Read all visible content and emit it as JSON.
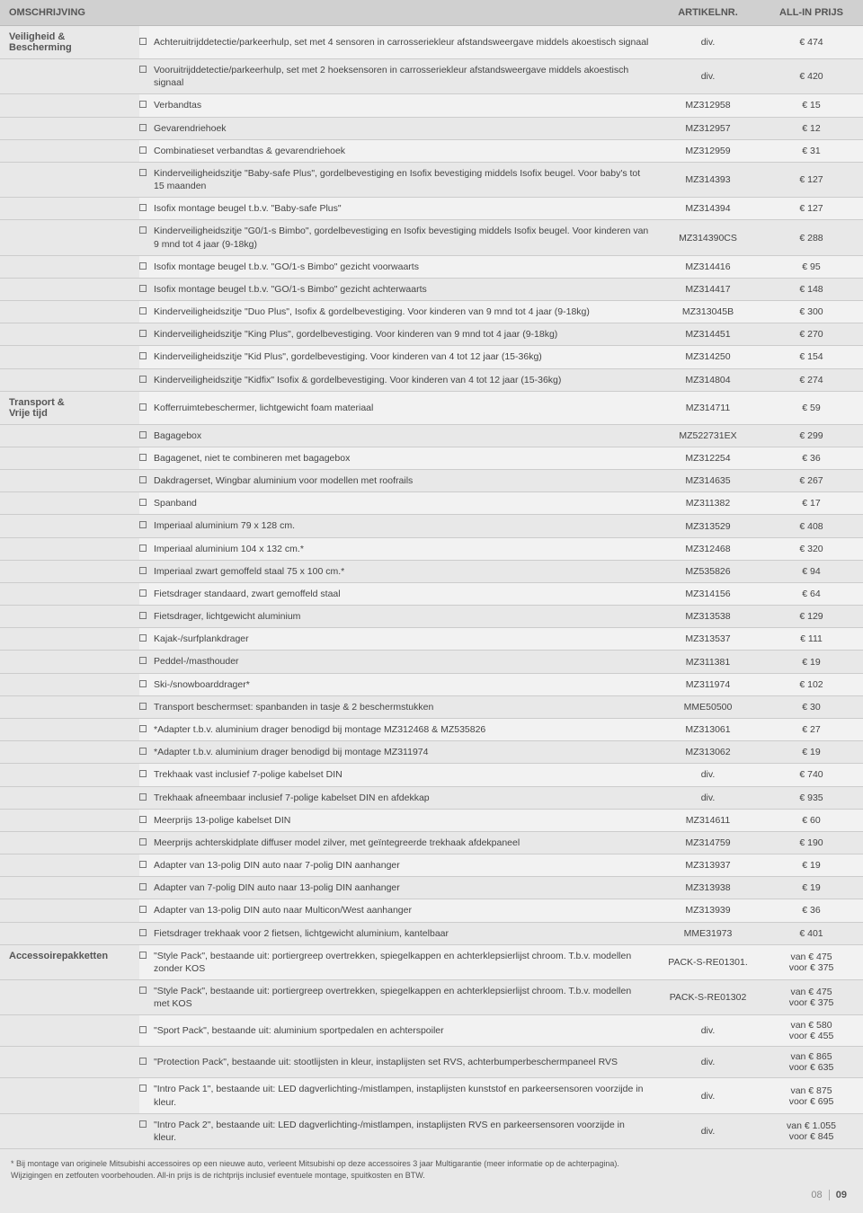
{
  "headers": {
    "description": "OMSCHRIJVING",
    "artnr": "ARTIKELNR.",
    "price": "ALL-IN PRIJS"
  },
  "categories": [
    {
      "name": "Veiligheid & Bescherming",
      "rows": [
        {
          "desc": "Achteruitrijddetectie/parkeerhulp, set met 4 sensoren in carrosseriekleur afstandsweergave middels akoestisch signaal",
          "art": "div.",
          "price": "€ 474"
        },
        {
          "desc": "Vooruitrijddetectie/parkeerhulp, set met 2 hoeksensoren in carrosseriekleur afstandsweergave middels akoestisch signaal",
          "art": "div.",
          "price": "€ 420"
        },
        {
          "desc": "Verbandtas",
          "art": "MZ312958",
          "price": "€ 15"
        },
        {
          "desc": "Gevarendriehoek",
          "art": "MZ312957",
          "price": "€ 12"
        },
        {
          "desc": "Combinatieset verbandtas & gevarendriehoek",
          "art": "MZ312959",
          "price": "€ 31"
        },
        {
          "desc": "Kinderveiligheidszitje \"Baby-safe Plus\", gordelbevestiging en Isofix bevestiging middels Isofix beugel. Voor baby's tot 15 maanden",
          "art": "MZ314393",
          "price": "€ 127"
        },
        {
          "desc": "Isofix montage beugel t.b.v. \"Baby-safe Plus\"",
          "art": "MZ314394",
          "price": "€ 127"
        },
        {
          "desc": "Kinderveiligheidszitje \"G0/1-s Bimbo\", gordelbevestiging en Isofix bevestiging middels Isofix beugel. Voor kinderen van 9 mnd tot 4 jaar (9-18kg)",
          "art": "MZ314390CS",
          "price": "€ 288"
        },
        {
          "desc": "Isofix montage beugel t.b.v. \"GO/1-s Bimbo\" gezicht voorwaarts",
          "art": "MZ314416",
          "price": "€ 95"
        },
        {
          "desc": "Isofix montage beugel t.b.v. \"GO/1-s Bimbo\" gezicht achterwaarts",
          "art": "MZ314417",
          "price": "€ 148"
        },
        {
          "desc": "Kinderveiligheidszitje \"Duo Plus\", Isofix & gordelbevestiging. Voor kinderen van 9 mnd tot 4 jaar (9-18kg)",
          "art": "MZ313045B",
          "price": "€ 300"
        },
        {
          "desc": "Kinderveiligheidszitje \"King Plus\", gordelbevestiging. Voor kinderen van 9 mnd tot 4 jaar (9-18kg)",
          "art": "MZ314451",
          "price": "€ 270"
        },
        {
          "desc": "Kinderveiligheidszitje \"Kid Plus\", gordelbevestiging. Voor kinderen van 4 tot 12 jaar (15-36kg)",
          "art": "MZ314250",
          "price": "€ 154"
        },
        {
          "desc": "Kinderveiligheidszitje \"Kidfix\" Isofix & gordelbevestiging. Voor kinderen van 4 tot 12 jaar (15-36kg)",
          "art": "MZ314804",
          "price": "€ 274"
        }
      ]
    },
    {
      "name": "Transport & Vrije tijd",
      "rows": [
        {
          "desc": "Kofferruimtebeschermer, lichtgewicht foam materiaal",
          "art": "MZ314711",
          "price": "€ 59"
        },
        {
          "desc": "Bagagebox",
          "art": "MZ522731EX",
          "price": "€ 299"
        },
        {
          "desc": "Bagagenet, niet te combineren met bagagebox",
          "art": "MZ312254",
          "price": "€ 36"
        },
        {
          "desc": "Dakdragerset, Wingbar aluminium voor modellen met roofrails",
          "art": "MZ314635",
          "price": "€ 267"
        },
        {
          "desc": "Spanband",
          "art": "MZ311382",
          "price": "€ 17"
        },
        {
          "desc": "Imperiaal aluminium 79 x 128 cm.",
          "art": "MZ313529",
          "price": "€ 408"
        },
        {
          "desc": "Imperiaal aluminium 104 x 132 cm.*",
          "art": "MZ312468",
          "price": "€ 320"
        },
        {
          "desc": "Imperiaal zwart gemoffeld staal 75 x 100 cm.*",
          "art": "MZ535826",
          "price": "€ 94"
        },
        {
          "desc": "Fietsdrager standaard, zwart gemoffeld staal",
          "art": "MZ314156",
          "price": "€ 64"
        },
        {
          "desc": "Fietsdrager, lichtgewicht aluminium",
          "art": "MZ313538",
          "price": "€ 129"
        },
        {
          "desc": "Kajak-/surfplankdrager",
          "art": "MZ313537",
          "price": "€ 111"
        },
        {
          "desc": "Peddel-/masthouder",
          "art": "MZ311381",
          "price": "€ 19"
        },
        {
          "desc": "Ski-/snowboarddrager*",
          "art": "MZ311974",
          "price": "€ 102"
        },
        {
          "desc": "Transport beschermset: spanbanden in tasje & 2 beschermstukken",
          "art": "MME50500",
          "price": "€ 30"
        },
        {
          "desc": "*Adapter t.b.v. aluminium drager benodigd bij montage MZ312468 & MZ535826",
          "art": "MZ313061",
          "price": "€ 27"
        },
        {
          "desc": "*Adapter t.b.v. aluminium drager benodigd bij montage MZ311974",
          "art": "MZ313062",
          "price": "€ 19"
        },
        {
          "desc": "Trekhaak vast inclusief 7-polige kabelset DIN",
          "art": "div.",
          "price": "€ 740"
        },
        {
          "desc": "Trekhaak afneembaar  inclusief 7-polige kabelset DIN en afdekkap",
          "art": "div.",
          "price": "€ 935"
        },
        {
          "desc": "Meerprijs 13-polige kabelset DIN",
          "art": "MZ314611",
          "price": "€ 60"
        },
        {
          "desc": "Meerprijs achterskidplate diffuser model zilver, met geïntegreerde trekhaak afdekpaneel",
          "art": "MZ314759",
          "price": "€ 190"
        },
        {
          "desc": "Adapter van 13-polig DIN auto naar 7-polig DIN aanhanger",
          "art": "MZ313937",
          "price": "€ 19"
        },
        {
          "desc": "Adapter van 7-polig DIN auto naar 13-polig DIN aanhanger",
          "art": "MZ313938",
          "price": "€ 19"
        },
        {
          "desc": "Adapter van 13-polig DIN auto naar Multicon/West aanhanger",
          "art": "MZ313939",
          "price": "€ 36"
        },
        {
          "desc": "Fietsdrager trekhaak voor 2 fietsen, lichtgewicht aluminium, kantelbaar",
          "art": "MME31973",
          "price": "€ 401"
        }
      ]
    },
    {
      "name": "Accessoirepakketten",
      "rows": [
        {
          "desc": "\"Style Pack\", bestaande uit: portiergreep overtrekken, spiegelkappen en achterklepsierlijst chroom. T.b.v. modellen zonder KOS",
          "art": "PACK-S-RE01301.",
          "price": "van € 475\nvoor € 375"
        },
        {
          "desc": "\"Style Pack\", bestaande uit: portiergreep overtrekken, spiegelkappen en achterklepsierlijst chroom. T.b.v. modellen met KOS",
          "art": "PACK-S-RE01302",
          "price": "van € 475\nvoor € 375"
        },
        {
          "desc": "\"Sport Pack\", bestaande uit: aluminium sportpedalen en achterspoiler",
          "art": "div.",
          "price": "van € 580\nvoor € 455"
        },
        {
          "desc": "\"Protection Pack\", bestaande uit: stootlijsten in kleur, instaplijsten set RVS, achterbumperbeschermpaneel RVS",
          "art": "div.",
          "price": "van € 865\nvoor € 635"
        },
        {
          "desc": "\"Intro Pack 1\", bestaande uit:  LED dagverlichting-/mistlampen, instaplijsten kunststof en parkeersensoren voorzijde in kleur.",
          "art": "div.",
          "price": "van € 875\nvoor € 695"
        },
        {
          "desc": "\"Intro Pack 2\", bestaande uit:  LED dagverlichting-/mistlampen, instaplijsten RVS en parkeersensoren voorzijde in kleur.",
          "art": "div.",
          "price": "van € 1.055\nvoor € 845"
        }
      ]
    }
  ],
  "footnote1": "* Bij montage van originele Mitsubishi accessoires op een nieuwe auto, verleent Mitsubishi op deze accessoires 3 jaar Multigarantie (meer informatie op de achterpagina).",
  "footnote2": "Wijzigingen en zetfouten voorbehouden. All-in prijs is de richtprijs inclusief eventuele montage, spuitkosten en BTW.",
  "page_left": "08",
  "page_right": "09"
}
